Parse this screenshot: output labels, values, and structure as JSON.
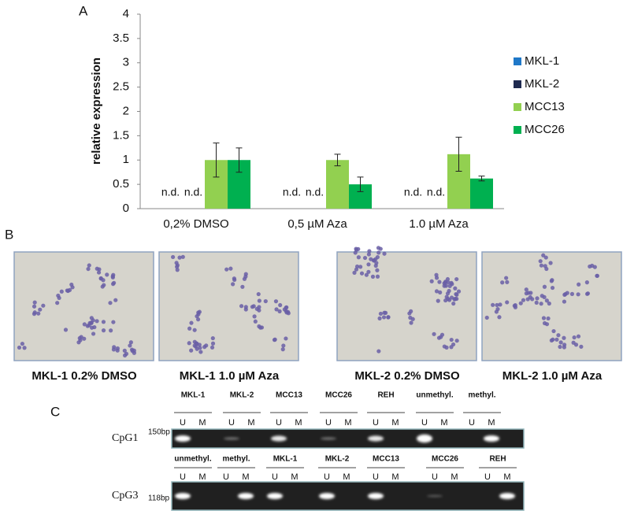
{
  "panels": {
    "a": "A",
    "b": "B",
    "c": "C"
  },
  "chart_data": {
    "type": "bar",
    "y_label": "relative expression",
    "categories": [
      "0,2% DMSO",
      "0,5 µM Aza",
      "1.0 µM Aza"
    ],
    "series": [
      {
        "name": "MKL-1",
        "color": "#1f78c8",
        "values": [
          null,
          null,
          null
        ],
        "value_labels": [
          "n.d.",
          "n.d.",
          "n.d."
        ]
      },
      {
        "name": "MKL-2",
        "color": "#1f2a50",
        "values": [
          null,
          null,
          null
        ],
        "value_labels": [
          "n.d.",
          "n.d.",
          "n.d."
        ]
      },
      {
        "name": "MCC13",
        "color": "#92d050",
        "values": [
          1.0,
          1.0,
          1.12
        ],
        "errors": [
          0.35,
          0.12,
          0.35
        ]
      },
      {
        "name": "MCC26",
        "color": "#00b050",
        "values": [
          1.0,
          0.5,
          0.62
        ],
        "errors": [
          0.25,
          0.15,
          0.05
        ]
      }
    ],
    "ylim": [
      0,
      4
    ],
    "yticks": [
      0,
      0.5,
      1,
      1.5,
      2,
      2.5,
      3,
      3.5,
      4
    ],
    "legend": "right"
  },
  "micrographs": [
    "MKL-1 0.2% DMSO",
    "MKL-1 1.0 µM Aza",
    "MKL-2 0.2% DMSO",
    "MKL-2 1.0 µM Aza"
  ],
  "gels": [
    {
      "name": "CpG1",
      "size": "150bp",
      "groups": [
        {
          "name": "MKL-1",
          "lanes": [
            "U",
            "M"
          ]
        },
        {
          "name": "MKL-2",
          "lanes": [
            "U",
            "M"
          ]
        },
        {
          "name": "MCC13",
          "lanes": [
            "U",
            "M"
          ]
        },
        {
          "name": "MCC26",
          "lanes": [
            "U",
            "M"
          ]
        },
        {
          "name": "REH",
          "lanes": [
            "U",
            "M"
          ]
        },
        {
          "name": "unmethyl.",
          "lanes": [
            "U",
            "M"
          ]
        },
        {
          "name": "methyl.",
          "lanes": [
            "U",
            "M"
          ]
        }
      ]
    },
    {
      "name": "CpG3",
      "size": "118bp",
      "groups": [
        {
          "name": "unmethyl.",
          "lanes": [
            "U",
            "M"
          ]
        },
        {
          "name": "methyl.",
          "lanes": [
            "U",
            "M"
          ]
        },
        {
          "name": "MKL-1",
          "lanes": [
            "U",
            "M"
          ]
        },
        {
          "name": "MKL-2",
          "lanes": [
            "U",
            "M"
          ]
        },
        {
          "name": "MCC13",
          "lanes": [
            "U",
            "M"
          ]
        },
        {
          "name": "MCC26",
          "lanes": [
            "U",
            "M"
          ]
        },
        {
          "name": "REH",
          "lanes": [
            "U",
            "M"
          ]
        }
      ]
    }
  ]
}
